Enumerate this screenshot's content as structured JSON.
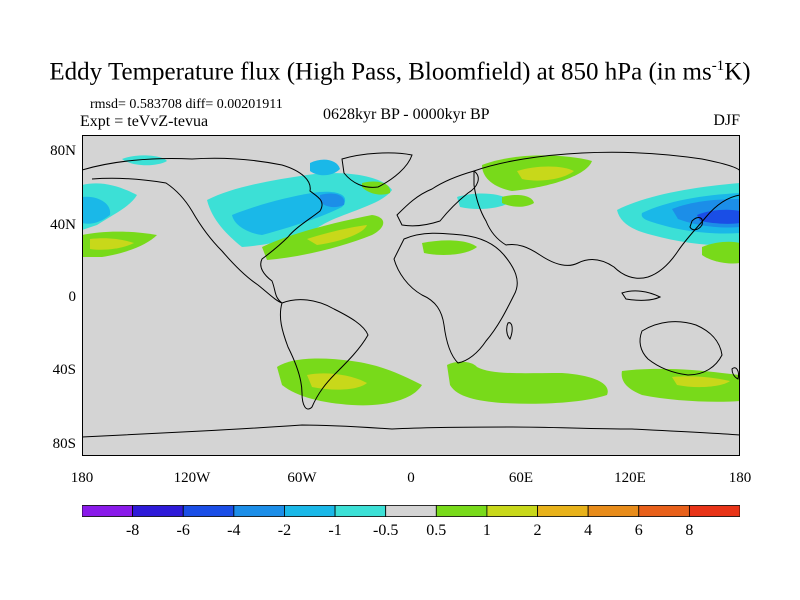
{
  "title": "Eddy Temperature flux (High Pass, Bloomfield) at 850 hPa (in ms",
  "title_sup": "-1",
  "title_end": "K)",
  "stats": "rmsd= 0.583708 diff= 0.00201911",
  "experiment": "Expt = teVvZ-tevua",
  "period": "0628kyr BP - 0000kyr BP",
  "season": "DJF",
  "y_ticks": [
    "80N",
    "40N",
    "0",
    "40S",
    "80S"
  ],
  "x_ticks": [
    "180",
    "120W",
    "60W",
    "0",
    "60E",
    "120E",
    "180"
  ],
  "colorbar": {
    "colors": [
      "#8a1aea",
      "#2e1ad8",
      "#1a4ee6",
      "#1c8ee8",
      "#1ab8e8",
      "#3ce0d6",
      "#d4d4d4",
      "#78da1a",
      "#c8d81a",
      "#e8b21a",
      "#e88c1a",
      "#e8601a",
      "#e83418"
    ],
    "labels": [
      "-8",
      "-6",
      "-4",
      "-2",
      "-1",
      "-0.5",
      "0.5",
      "1",
      "2",
      "4",
      "6",
      "8"
    ]
  },
  "map": {
    "background": "#d4d4d4",
    "coast": "#000000"
  }
}
